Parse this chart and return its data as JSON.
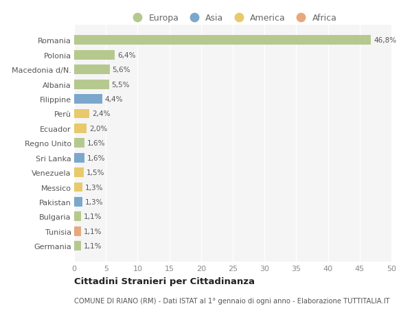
{
  "categories": [
    "Romania",
    "Polonia",
    "Macedonia d/N.",
    "Albania",
    "Filippine",
    "Perù",
    "Ecuador",
    "Regno Unito",
    "Sri Lanka",
    "Venezuela",
    "Messico",
    "Pakistan",
    "Bulgaria",
    "Tunisia",
    "Germania"
  ],
  "values": [
    46.8,
    6.4,
    5.6,
    5.5,
    4.4,
    2.4,
    2.0,
    1.6,
    1.6,
    1.5,
    1.3,
    1.3,
    1.1,
    1.1,
    1.1
  ],
  "labels": [
    "46,8%",
    "6,4%",
    "5,6%",
    "5,5%",
    "4,4%",
    "2,4%",
    "2,0%",
    "1,6%",
    "1,6%",
    "1,5%",
    "1,3%",
    "1,3%",
    "1,1%",
    "1,1%",
    "1,1%"
  ],
  "continents": [
    "Europa",
    "Europa",
    "Europa",
    "Europa",
    "Asia",
    "America",
    "America",
    "Europa",
    "Asia",
    "America",
    "America",
    "Asia",
    "Europa",
    "Africa",
    "Europa"
  ],
  "colors": {
    "Europa": "#b5c98e",
    "Asia": "#7ba7cc",
    "America": "#e8c96b",
    "Africa": "#e8a87c"
  },
  "legend_order": [
    "Europa",
    "Asia",
    "America",
    "Africa"
  ],
  "title1": "Cittadini Stranieri per Cittadinanza",
  "title2": "COMUNE DI RIANO (RM) - Dati ISTAT al 1° gennaio di ogni anno - Elaborazione TUTTITALIA.IT",
  "xlim": [
    0,
    50
  ],
  "xticks": [
    0,
    5,
    10,
    15,
    20,
    25,
    30,
    35,
    40,
    45,
    50
  ],
  "bg_color": "#ffffff",
  "plot_bg_color": "#f5f5f5",
  "grid_color": "#ffffff",
  "bar_height": 0.65
}
